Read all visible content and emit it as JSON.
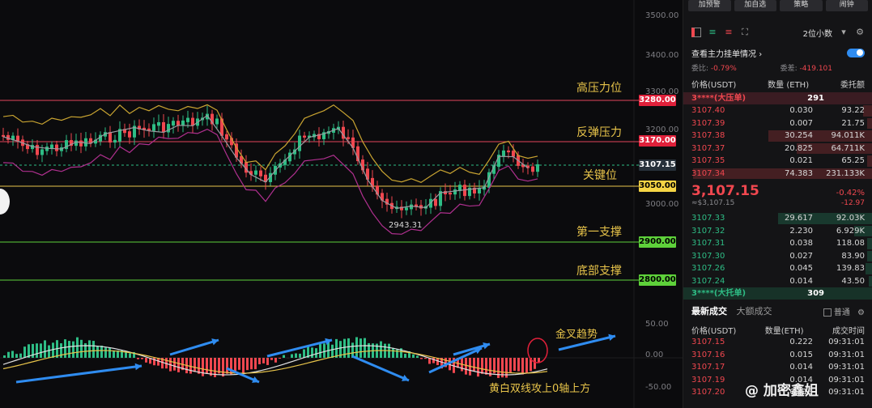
{
  "chart": {
    "axis_labels": [
      "3500.00",
      "3400.00",
      "3300.00",
      "3200.00",
      "3000.00",
      "50.00",
      "0.00",
      "-50.00"
    ],
    "levels": [
      {
        "price": "3280.00",
        "label": "高压力位",
        "line_color": "#e0445a",
        "tag_bg": "#e0203a",
        "tag_fg": "#ffffff"
      },
      {
        "price": "3170.00",
        "label": "反弹压力",
        "line_color": "#e0445a",
        "tag_bg": "#e0203a",
        "tag_fg": "#ffffff"
      },
      {
        "price": "3107.15",
        "label": "关键位",
        "line_color": "#2ebd85",
        "tag_bg": "#27313a",
        "tag_fg": "#ffffff"
      },
      {
        "price": "3050.00",
        "label": "",
        "line_color": "#e8c44a",
        "tag_bg": "#f5d445",
        "tag_fg": "#000000"
      },
      {
        "price": "2900.00",
        "label": "第一支撑",
        "line_color": "#5ed13a",
        "tag_bg": "#5ed13a",
        "tag_fg": "#000000"
      },
      {
        "price": "2800.00",
        "label": "底部支撑",
        "line_color": "#5ed13a",
        "tag_bg": "#5ed13a",
        "tag_fg": "#000000"
      }
    ],
    "low_marker": "2943.31",
    "golden_cross_label": "金叉趋势",
    "macd_note": "黄白双线攻上0轴上方"
  },
  "panel": {
    "top_buttons": [
      "加预警",
      "加自选",
      "策略",
      "闹钟"
    ],
    "precision": "2位小数",
    "main_orders_label": "查看主力挂单情况",
    "ratio_label": "委比:",
    "ratio_value": "-0.79%",
    "diff_label": "委差:",
    "diff_value": "-419.101",
    "cols": {
      "price": "价格(USDT)",
      "qty": "数量 (ETH)",
      "amount": "委托额"
    },
    "ask_banner": {
      "label": "3****(大压单)",
      "value": "291"
    },
    "asks": [
      {
        "price": "3107.40",
        "qty": "0.030",
        "amt": "93.22",
        "bar": 0.05
      },
      {
        "price": "3107.39",
        "qty": "0.007",
        "amt": "21.75",
        "bar": 0.03
      },
      {
        "price": "3107.38",
        "qty": "30.254",
        "amt": "94.011K",
        "bar": 0.55
      },
      {
        "price": "3107.37",
        "qty": "20.825",
        "amt": "64.711K",
        "bar": 0.4
      },
      {
        "price": "3107.35",
        "qty": "0.021",
        "amt": "65.25",
        "bar": 0.03
      },
      {
        "price": "3107.34",
        "qty": "74.383",
        "amt": "231.133K",
        "bar": 0.95
      }
    ],
    "last_price": "3,107.15",
    "last_change_pct": "-0.42%",
    "last_usd": "≈$3,107.15",
    "last_change": "-12.97",
    "bids": [
      {
        "price": "3107.33",
        "qty": "29.617",
        "amt": "92.03K",
        "bar": 0.5
      },
      {
        "price": "3107.32",
        "qty": "2.230",
        "amt": "6.929K",
        "bar": 0.1
      },
      {
        "price": "3107.31",
        "qty": "0.038",
        "amt": "118.08",
        "bar": 0.03
      },
      {
        "price": "3107.30",
        "qty": "0.027",
        "amt": "83.90",
        "bar": 0.03
      },
      {
        "price": "3107.26",
        "qty": "0.045",
        "amt": "139.83",
        "bar": 0.04
      },
      {
        "price": "3107.24",
        "qty": "0.014",
        "amt": "43.50",
        "bar": 0.02
      }
    ],
    "bid_banner": {
      "label": "3****(大托单)",
      "value": "309"
    },
    "trade_tabs": [
      "最新成交",
      "大额成交"
    ],
    "trade_filter": "普通",
    "trade_cols": {
      "price": "价格(USDT)",
      "qty": "数量(ETH)",
      "time": "成交时间"
    },
    "trades": [
      {
        "price": "3107.15",
        "qty": "0.222",
        "time": "09:31:01"
      },
      {
        "price": "3107.16",
        "qty": "0.015",
        "time": "09:31:01"
      },
      {
        "price": "3107.17",
        "qty": "0.014",
        "time": "09:31:01"
      },
      {
        "price": "3107.19",
        "qty": "0.014",
        "time": "09:31:01"
      },
      {
        "price": "3107.20",
        "qty": "0.013",
        "time": "09:31:01"
      }
    ],
    "watermark": "@ 加密鑫姐"
  }
}
